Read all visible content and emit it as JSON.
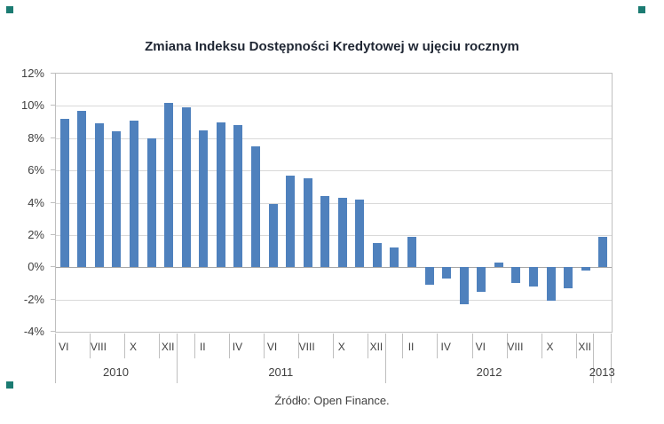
{
  "colors": {
    "bar": "#4F81BD",
    "grid": "#D9D9D9",
    "axis": "#BFBFBF",
    "zero_line": "#A6A6A6",
    "text": "#404040",
    "title_text": "#1f2633",
    "handle": "#1B7B72"
  },
  "chart_data": {
    "type": "bar",
    "title": "Zmiana Indeksu Dostępności Kredytowej w ujęciu rocznym",
    "source": "Źródło: Open Finance.",
    "xlabel": "",
    "ylabel": "",
    "ylim": [
      -4,
      12
    ],
    "ytick_step": 2,
    "ytick_labels": [
      "12%",
      "10%",
      "8%",
      "6%",
      "4%",
      "2%",
      "0%",
      "-2%",
      "-4%"
    ],
    "grid": true,
    "legend": false,
    "month_label_interval": 2,
    "year_labels": [
      "2010",
      "2011",
      "2012",
      "2013"
    ],
    "categories": [
      {
        "month": "VI",
        "year": "2010"
      },
      {
        "month": "VII",
        "year": "2010"
      },
      {
        "month": "VIII",
        "year": "2010"
      },
      {
        "month": "IX",
        "year": "2010"
      },
      {
        "month": "X",
        "year": "2010"
      },
      {
        "month": "XI",
        "year": "2010"
      },
      {
        "month": "XII",
        "year": "2010"
      },
      {
        "month": "I",
        "year": "2011"
      },
      {
        "month": "II",
        "year": "2011"
      },
      {
        "month": "III",
        "year": "2011"
      },
      {
        "month": "IV",
        "year": "2011"
      },
      {
        "month": "V",
        "year": "2011"
      },
      {
        "month": "VI",
        "year": "2011"
      },
      {
        "month": "VII",
        "year": "2011"
      },
      {
        "month": "VIII",
        "year": "2011"
      },
      {
        "month": "IX",
        "year": "2011"
      },
      {
        "month": "X",
        "year": "2011"
      },
      {
        "month": "XI",
        "year": "2011"
      },
      {
        "month": "XII",
        "year": "2011"
      },
      {
        "month": "I",
        "year": "2012"
      },
      {
        "month": "II",
        "year": "2012"
      },
      {
        "month": "III",
        "year": "2012"
      },
      {
        "month": "IV",
        "year": "2012"
      },
      {
        "month": "V",
        "year": "2012"
      },
      {
        "month": "VI",
        "year": "2012"
      },
      {
        "month": "VII",
        "year": "2012"
      },
      {
        "month": "VIII",
        "year": "2012"
      },
      {
        "month": "IX",
        "year": "2012"
      },
      {
        "month": "X",
        "year": "2012"
      },
      {
        "month": "XI",
        "year": "2012"
      },
      {
        "month": "XII",
        "year": "2012"
      },
      {
        "month": "I",
        "year": "2013"
      }
    ],
    "values": [
      9.2,
      9.7,
      8.9,
      8.4,
      9.1,
      8.0,
      10.2,
      9.9,
      8.5,
      9.0,
      8.8,
      7.5,
      3.9,
      5.7,
      5.5,
      4.4,
      4.3,
      4.2,
      1.5,
      1.2,
      1.9,
      -1.1,
      -0.7,
      -2.3,
      -1.5,
      0.3,
      -1.0,
      -1.2,
      -2.1,
      -1.3,
      -0.2,
      1.9
    ]
  }
}
